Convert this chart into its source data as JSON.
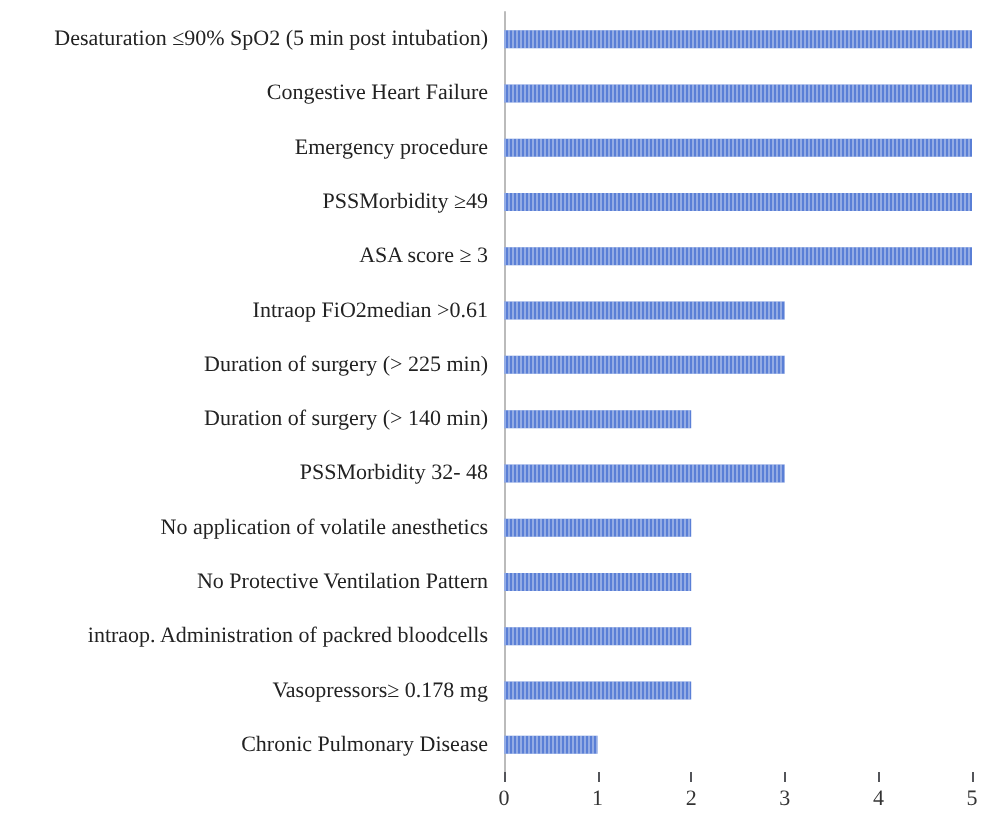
{
  "chart_data": {
    "type": "bar",
    "orientation": "horizontal",
    "categories": [
      "Desaturation ≤90% SpO2 (5 min post intubation)",
      "Congestive Heart Failure",
      "Emergency procedure",
      "PSSMorbidity ≥49",
      "ASA score ≥ 3",
      "Intraop FiO2median >0.61",
      "Duration of surgery (> 225 min)",
      "Duration of surgery (> 140 min)",
      "PSSMorbidity 32- 48",
      "No application of volatile anesthetics",
      "No Protective Ventilation Pattern",
      "intraop. Administration of packred bloodcells",
      "Vasopressors≥ 0.178 mg",
      "Chronic Pulmonary Disease"
    ],
    "values": [
      5,
      5,
      5,
      5,
      5,
      3,
      3,
      2,
      3,
      2,
      2,
      2,
      2,
      1
    ],
    "color": "#5a7fd6",
    "xlim": [
      0,
      5
    ],
    "xticks": [
      0,
      1,
      2,
      3,
      4,
      5
    ]
  }
}
